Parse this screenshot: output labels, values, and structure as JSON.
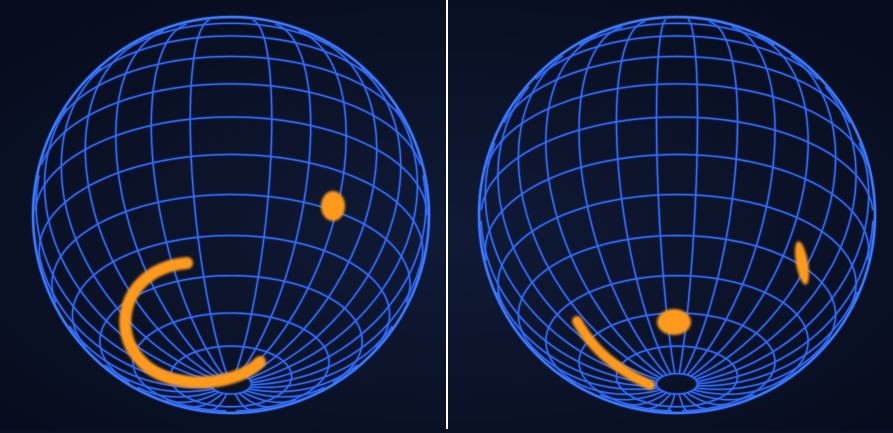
{
  "colors": {
    "background": "#0a1024",
    "grid": "#2f6bff",
    "grid_glow": "#79a7ff",
    "feature": "#ff9a1f"
  },
  "panels": [
    {
      "name": "left-globe",
      "features": [
        "arc",
        "spot"
      ]
    },
    {
      "name": "right-globe",
      "features": [
        "arc",
        "spot",
        "spot-elongated"
      ]
    }
  ]
}
